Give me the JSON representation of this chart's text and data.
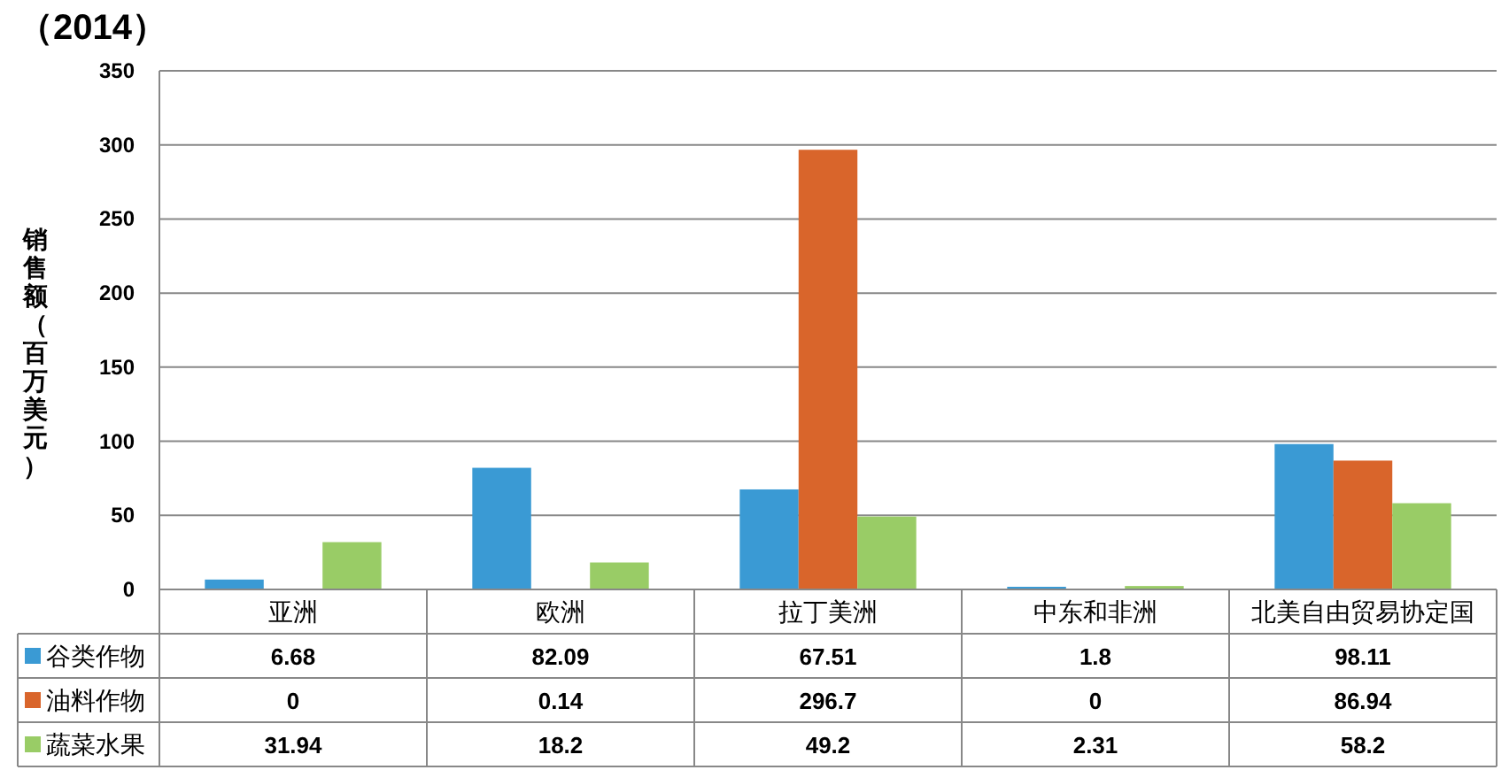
{
  "chart_data": {
    "type": "bar",
    "title": "（2014）",
    "ylabel": "销售额（百万美元）",
    "categories": [
      "亚洲",
      "欧洲",
      "拉丁美洲",
      "中东和非洲",
      "北美自由贸易协定国"
    ],
    "series": [
      {
        "name": "谷类作物",
        "color": "#3a9ad4",
        "values": [
          6.68,
          82.09,
          67.51,
          1.8,
          98.11
        ]
      },
      {
        "name": "油料作物",
        "color": "#d9652b",
        "values": [
          0,
          0.14,
          296.7,
          0,
          86.94
        ]
      },
      {
        "name": "蔬菜水果",
        "color": "#99cc66",
        "values": [
          31.94,
          18.2,
          49.2,
          2.31,
          58.2
        ]
      }
    ],
    "ylim": [
      0,
      350
    ],
    "yticks": [
      0,
      50,
      100,
      150,
      200,
      250,
      300,
      350
    ],
    "grid": "y",
    "data_labels": true,
    "legend": "bottom"
  }
}
